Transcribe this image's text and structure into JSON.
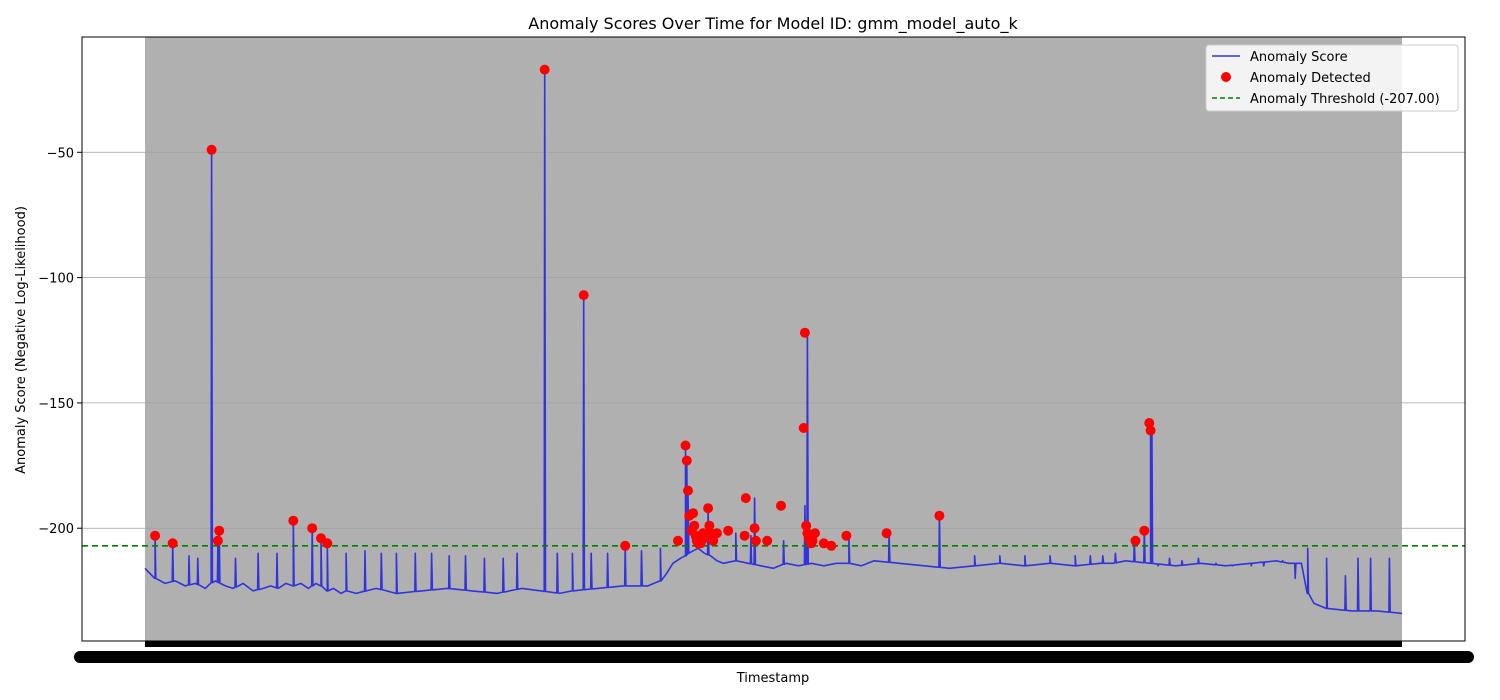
{
  "chart_data": {
    "type": "line",
    "title": "Anomaly Scores Over Time for Model ID: gmm_model_auto_k",
    "xlabel": "Timestamp",
    "ylabel": "Anomaly Score (Negative Log-Likelihood)",
    "x_type": "ordinal index (x tick labels overlap and are not legible)",
    "xlim": [
      0,
      1000
    ],
    "ylim": [
      -245,
      -4
    ],
    "yticks": [
      -50,
      -100,
      -150,
      -200
    ],
    "grid": "horizontal",
    "legend_position": "upper right",
    "threshold": {
      "name": "Anomaly Threshold (-207.00)",
      "value": -207.0,
      "color": "#008000",
      "style": "dashed"
    },
    "series": [
      {
        "name": "Anomaly Score",
        "color": "#3333dd",
        "x": [
          0,
          8,
          16,
          24,
          32,
          40,
          48,
          52,
          56,
          60,
          64,
          70,
          78,
          86,
          94,
          100,
          106,
          112,
          118,
          124,
          130,
          136,
          140,
          145,
          150,
          156,
          160,
          168,
          176,
          184,
          200,
          220,
          240,
          260,
          280,
          300,
          315,
          330,
          340,
          360,
          380,
          400,
          410,
          415,
          420,
          426,
          430,
          432,
          436,
          440,
          445,
          450,
          455,
          460,
          470,
          480,
          490,
          500,
          510,
          520,
          530,
          540,
          550,
          560,
          570,
          580,
          600,
          620,
          640,
          660,
          680,
          700,
          720,
          740,
          760,
          770,
          780,
          800,
          820,
          840,
          860,
          880,
          900,
          910,
          920,
          925,
          930,
          940,
          960,
          980,
          1000
        ],
        "y": [
          -216,
          -220,
          -222,
          -221,
          -223,
          -222,
          -224,
          -222,
          -221,
          -222,
          -223,
          -224,
          -222,
          -225,
          -224,
          -223,
          -224,
          -222,
          -223,
          -222,
          -224,
          -222,
          -223,
          -225,
          -224,
          -226,
          -225,
          -226,
          -225,
          -224,
          -226,
          -225,
          -224,
          -225,
          -226,
          -224,
          -225,
          -226,
          -225,
          -224,
          -223,
          -223,
          -221,
          -218,
          -214,
          -212,
          -211,
          -210,
          -209,
          -208,
          -210,
          -211,
          -213,
          -214,
          -213,
          -214,
          -215,
          -216,
          -214,
          -215,
          -214,
          -215,
          -214,
          -214,
          -215,
          -213,
          -214,
          -215,
          -216,
          -215,
          -214,
          -215,
          -214,
          -215,
          -214,
          -214,
          -213,
          -214,
          -215,
          -214,
          -215,
          -214,
          -213,
          -214,
          -214,
          -226,
          -230,
          -232,
          -233,
          -233,
          -234
        ]
      }
    ],
    "spikes": [
      {
        "x": 8,
        "y": -203
      },
      {
        "x": 22,
        "y": -206
      },
      {
        "x": 35,
        "y": -211
      },
      {
        "x": 42,
        "y": -212
      },
      {
        "x": 53,
        "y": -49
      },
      {
        "x": 58,
        "y": -205
      },
      {
        "x": 59,
        "y": -201
      },
      {
        "x": 72,
        "y": -212
      },
      {
        "x": 90,
        "y": -210
      },
      {
        "x": 105,
        "y": -210
      },
      {
        "x": 118,
        "y": -197
      },
      {
        "x": 133,
        "y": -200
      },
      {
        "x": 140,
        "y": -204
      },
      {
        "x": 145,
        "y": -206
      },
      {
        "x": 160,
        "y": -210
      },
      {
        "x": 175,
        "y": -209
      },
      {
        "x": 188,
        "y": -210
      },
      {
        "x": 200,
        "y": -210
      },
      {
        "x": 215,
        "y": -210
      },
      {
        "x": 228,
        "y": -210
      },
      {
        "x": 242,
        "y": -211
      },
      {
        "x": 255,
        "y": -211
      },
      {
        "x": 270,
        "y": -212
      },
      {
        "x": 285,
        "y": -212
      },
      {
        "x": 296,
        "y": -210
      },
      {
        "x": 318,
        "y": -17
      },
      {
        "x": 328,
        "y": -210
      },
      {
        "x": 340,
        "y": -210
      },
      {
        "x": 349,
        "y": -107
      },
      {
        "x": 355,
        "y": -210
      },
      {
        "x": 368,
        "y": -210
      },
      {
        "x": 382,
        "y": -207
      },
      {
        "x": 395,
        "y": -209
      },
      {
        "x": 410,
        "y": -208
      },
      {
        "x": 430,
        "y": -167
      },
      {
        "x": 431,
        "y": -173
      },
      {
        "x": 432,
        "y": -185
      },
      {
        "x": 448,
        "y": -192
      },
      {
        "x": 470,
        "y": -202
      },
      {
        "x": 482,
        "y": -203
      },
      {
        "x": 485,
        "y": -188
      },
      {
        "x": 508,
        "y": -205
      },
      {
        "x": 525,
        "y": -191
      },
      {
        "x": 527,
        "y": -122
      },
      {
        "x": 560,
        "y": -203
      },
      {
        "x": 592,
        "y": -202
      },
      {
        "x": 632,
        "y": -195
      },
      {
        "x": 660,
        "y": -211
      },
      {
        "x": 680,
        "y": -211
      },
      {
        "x": 700,
        "y": -211
      },
      {
        "x": 720,
        "y": -211
      },
      {
        "x": 740,
        "y": -211
      },
      {
        "x": 752,
        "y": -211
      },
      {
        "x": 762,
        "y": -211
      },
      {
        "x": 772,
        "y": -210
      },
      {
        "x": 787,
        "y": -205
      },
      {
        "x": 795,
        "y": -201
      },
      {
        "x": 800,
        "y": -158
      },
      {
        "x": 801,
        "y": -161
      },
      {
        "x": 806,
        "y": -215
      },
      {
        "x": 815,
        "y": -212
      },
      {
        "x": 825,
        "y": -213
      },
      {
        "x": 838,
        "y": -212
      },
      {
        "x": 852,
        "y": -214
      },
      {
        "x": 865,
        "y": -215
      },
      {
        "x": 880,
        "y": -215
      },
      {
        "x": 890,
        "y": -215
      },
      {
        "x": 905,
        "y": -213
      },
      {
        "x": 915,
        "y": -220
      },
      {
        "x": 925,
        "y": -208
      },
      {
        "x": 940,
        "y": -212
      },
      {
        "x": 955,
        "y": -219
      },
      {
        "x": 965,
        "y": -212
      },
      {
        "x": 975,
        "y": -212
      },
      {
        "x": 990,
        "y": -212
      }
    ],
    "anomalies": {
      "name": "Anomaly Detected",
      "color": "#ff0000",
      "x": [
        8,
        22,
        53,
        59,
        58,
        118,
        133,
        140,
        145,
        318,
        349,
        382,
        424,
        430,
        431,
        432,
        433,
        435,
        436,
        437,
        438,
        439,
        440,
        441,
        442,
        443,
        444,
        445,
        446,
        448,
        449,
        450,
        451,
        452,
        455,
        464,
        477,
        478,
        485,
        486,
        495,
        506,
        524,
        525,
        526,
        527,
        528,
        529,
        530,
        531,
        533,
        540,
        546,
        558,
        590,
        632,
        788,
        795,
        799,
        800
      ],
      "y": [
        -203,
        -206,
        -49,
        -201,
        -205,
        -197,
        -200,
        -204,
        -206,
        -17,
        -107,
        -207,
        -205,
        -167,
        -173,
        -185,
        -195,
        -201,
        -194,
        -199,
        -203,
        -205,
        -206,
        -204,
        -206,
        -204,
        -202,
        -204,
        -203,
        -192,
        -199,
        -202,
        -203,
        -205,
        -202,
        -201,
        -203,
        -188,
        -200,
        -205,
        -205,
        -191,
        -160,
        -122,
        -199,
        -202,
        -204,
        -205,
        -206,
        -205,
        -202,
        -206,
        -207,
        -203,
        -202,
        -195,
        -205,
        -201,
        -158,
        -161
      ]
    },
    "shaded_region": {
      "x_start": 0,
      "x_end": 1000,
      "color": "#b0b0b0"
    }
  }
}
